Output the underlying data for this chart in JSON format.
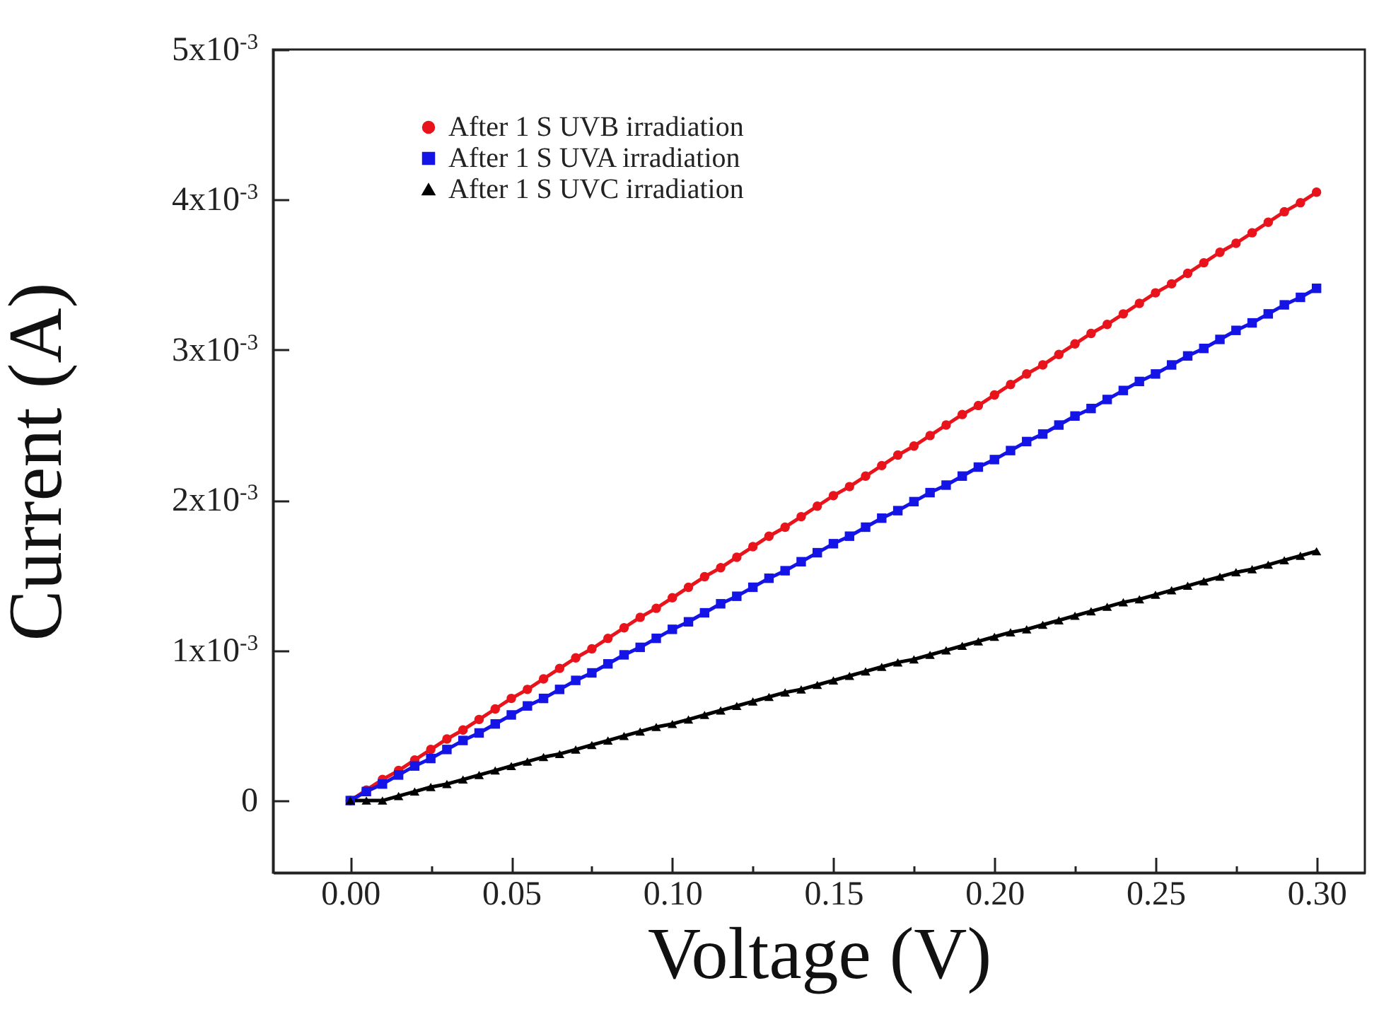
{
  "chart_data": {
    "type": "line",
    "xlabel": "Voltage (V)",
    "ylabel": "Current (A)",
    "x": [
      0,
      0.005,
      0.01,
      0.015,
      0.02,
      0.025,
      0.03,
      0.035,
      0.04,
      0.045,
      0.05,
      0.055,
      0.06,
      0.065,
      0.07,
      0.075,
      0.08,
      0.085,
      0.09,
      0.095,
      0.1,
      0.105,
      0.11,
      0.115,
      0.12,
      0.125,
      0.13,
      0.135,
      0.14,
      0.145,
      0.15,
      0.155,
      0.16,
      0.165,
      0.17,
      0.175,
      0.18,
      0.185,
      0.19,
      0.195,
      0.2,
      0.205,
      0.21,
      0.215,
      0.22,
      0.225,
      0.23,
      0.235,
      0.24,
      0.245,
      0.25,
      0.255,
      0.26,
      0.265,
      0.27,
      0.275,
      0.28,
      0.285,
      0.29,
      0.295,
      0.3
    ],
    "series": [
      {
        "name": "After 1 S UVB irradiation",
        "color": "#e8131b",
        "marker": "circle",
        "values": [
          0,
          7e-05,
          0.00014,
          0.0002,
          0.00027,
          0.00034,
          0.00041,
          0.00047,
          0.00054,
          0.00061,
          0.00068,
          0.00074,
          0.00081,
          0.00088,
          0.00095,
          0.00101,
          0.00108,
          0.00115,
          0.00122,
          0.00128,
          0.00135,
          0.00142,
          0.00149,
          0.00155,
          0.00162,
          0.00169,
          0.00176,
          0.00182,
          0.00189,
          0.00196,
          0.00203,
          0.00209,
          0.00216,
          0.00223,
          0.0023,
          0.00236,
          0.00243,
          0.0025,
          0.00257,
          0.00263,
          0.0027,
          0.00277,
          0.00284,
          0.0029,
          0.00297,
          0.00304,
          0.00311,
          0.00317,
          0.00324,
          0.00331,
          0.00338,
          0.00344,
          0.00351,
          0.00358,
          0.00365,
          0.00371,
          0.00378,
          0.00385,
          0.00392,
          0.00398,
          0.00405
        ]
      },
      {
        "name": "After 1 S UVA irradiation",
        "color": "#1414e6",
        "marker": "square",
        "values": [
          0,
          6e-05,
          0.00011,
          0.00017,
          0.00023,
          0.00028,
          0.00034,
          0.0004,
          0.00045,
          0.00051,
          0.00057,
          0.00063,
          0.00068,
          0.00074,
          0.0008,
          0.00085,
          0.00091,
          0.00097,
          0.00102,
          0.00108,
          0.00114,
          0.00119,
          0.00125,
          0.00131,
          0.00136,
          0.00142,
          0.00148,
          0.00153,
          0.00159,
          0.00165,
          0.00171,
          0.00176,
          0.00182,
          0.00188,
          0.00193,
          0.00199,
          0.00205,
          0.0021,
          0.00216,
          0.00222,
          0.00227,
          0.00233,
          0.00239,
          0.00244,
          0.0025,
          0.00256,
          0.00261,
          0.00267,
          0.00273,
          0.00279,
          0.00284,
          0.0029,
          0.00296,
          0.00301,
          0.00307,
          0.00313,
          0.00318,
          0.00324,
          0.0033,
          0.00335,
          0.00341
        ]
      },
      {
        "name": "After 1 S UVC irradiation",
        "color": "#000000",
        "marker": "triangle",
        "values": [
          0,
          0,
          0,
          3e-05,
          6e-05,
          9e-05,
          0.00011,
          0.00014,
          0.00017,
          0.0002,
          0.00023,
          0.00026,
          0.00029,
          0.00031,
          0.00034,
          0.00037,
          0.0004,
          0.00043,
          0.00046,
          0.00049,
          0.00051,
          0.00054,
          0.00057,
          0.0006,
          0.00063,
          0.00066,
          0.00069,
          0.00072,
          0.00074,
          0.00077,
          0.0008,
          0.00083,
          0.00086,
          0.00089,
          0.00092,
          0.00094,
          0.00097,
          0.001,
          0.00103,
          0.00106,
          0.00109,
          0.00112,
          0.00114,
          0.00117,
          0.0012,
          0.00123,
          0.00126,
          0.00129,
          0.00132,
          0.00134,
          0.00137,
          0.0014,
          0.00143,
          0.00146,
          0.00149,
          0.00152,
          0.00154,
          0.00157,
          0.0016,
          0.00163,
          0.00166
        ]
      }
    ],
    "xlim": [
      -0.024,
      0.315
    ],
    "xticks": [
      {
        "value": 0,
        "label": "0.00"
      },
      {
        "value": 0.025,
        "label": null
      },
      {
        "value": 0.05,
        "label": "0.05"
      },
      {
        "value": 0.075,
        "label": null
      },
      {
        "value": 0.1,
        "label": "0.10"
      },
      {
        "value": 0.125,
        "label": null
      },
      {
        "value": 0.15,
        "label": "0.15"
      },
      {
        "value": 0.175,
        "label": null
      },
      {
        "value": 0.2,
        "label": "0.20"
      },
      {
        "value": 0.225,
        "label": null
      },
      {
        "value": 0.25,
        "label": "0.25"
      },
      {
        "value": 0.275,
        "label": null
      },
      {
        "value": 0.3,
        "label": "0.30"
      }
    ],
    "ylim": [
      -0.00048,
      0.005
    ],
    "yticks": [
      0,
      {
        "value": 0.001,
        "label": "1x10$^{-3}$"
      },
      {
        "value": 0.002,
        "label": "2x10$^{-3}$"
      },
      {
        "value": 0.003,
        "label": "3x10$^{-3}$"
      },
      {
        "value": 0.004,
        "label": "4x10$^{-3}$"
      },
      {
        "value": 0.005,
        "label": "5x10$^{-3}$"
      }
    ],
    "grid": false,
    "legend": "top left",
    "line_style": "solid"
  }
}
